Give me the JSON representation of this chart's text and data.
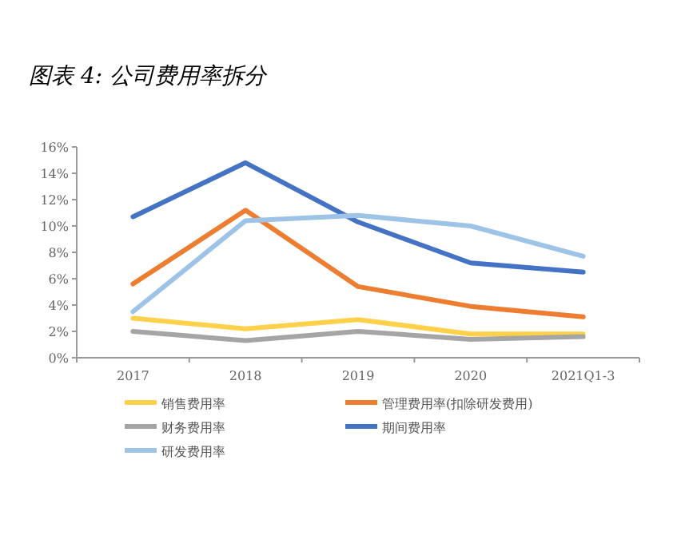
{
  "chart_data": {
    "type": "line",
    "title": "图表 4: 公司费用率拆分",
    "categories": [
      "2017",
      "2018",
      "2019",
      "2020",
      "2021Q1-3"
    ],
    "series": [
      {
        "name": "销售费用率",
        "color": "#ffd04a",
        "values": [
          3.0,
          2.2,
          2.9,
          1.8,
          1.8
        ]
      },
      {
        "name": "管理费用率(扣除研发费用)",
        "color": "#ed7d31",
        "values": [
          5.6,
          11.2,
          5.4,
          3.9,
          3.1
        ]
      },
      {
        "name": "财务费用率",
        "color": "#a5a5a5",
        "values": [
          2.0,
          1.3,
          2.0,
          1.4,
          1.6
        ]
      },
      {
        "name": "期间费用率",
        "color": "#4472c4",
        "values": [
          10.7,
          14.8,
          10.3,
          7.2,
          6.5
        ]
      },
      {
        "name": "研发费用率",
        "color": "#9dc3e6",
        "values": [
          3.5,
          10.4,
          10.8,
          10.0,
          7.7
        ]
      }
    ],
    "ylim": [
      0,
      16
    ],
    "yticks": [
      {
        "value": 0,
        "label": "0%"
      },
      {
        "value": 2,
        "label": "2%"
      },
      {
        "value": 4,
        "label": "4%"
      },
      {
        "value": 6,
        "label": "6%"
      },
      {
        "value": 8,
        "label": "8%"
      },
      {
        "value": 10,
        "label": "10%"
      },
      {
        "value": 12,
        "label": "12%"
      },
      {
        "value": 14,
        "label": "14%"
      },
      {
        "value": 16,
        "label": "16%"
      }
    ],
    "grid": false,
    "legend": "bottom",
    "marker": "none",
    "line_style": "solid"
  }
}
